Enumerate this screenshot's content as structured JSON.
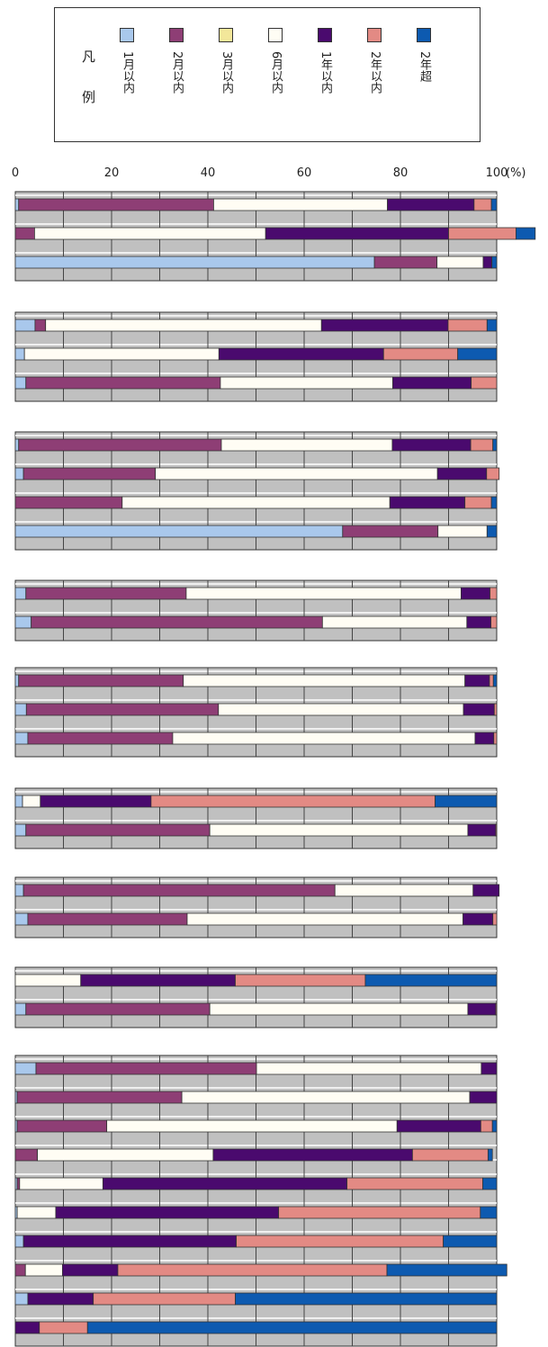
{
  "legend": {
    "title_1": "凡",
    "title_2": "例",
    "items": [
      {
        "label": "1月以内",
        "color": "#a9c8ec"
      },
      {
        "label": "2月以内",
        "color": "#8e3e75"
      },
      {
        "label": "3月以内",
        "color": "#f3e79a"
      },
      {
        "label": "6月以内",
        "color": "#fffdf4"
      },
      {
        "label": "1年以内",
        "color": "#4a0a6e"
      },
      {
        "label": "2年以内",
        "color": "#e38a84"
      },
      {
        "label": "2年超",
        "color": "#0d5ab0"
      }
    ]
  },
  "axis": {
    "ticks": [
      "0",
      "20",
      "40",
      "60",
      "80",
      "100"
    ],
    "unit": "(%)"
  },
  "chart_data": {
    "type": "bar",
    "orientation": "horizontal-stacked-100",
    "xlim": [
      0,
      100
    ],
    "series_names": [
      "1月以内",
      "2月以内",
      "3月以内",
      "6月以内",
      "1年以内",
      "2年以内",
      "2年超"
    ],
    "grid": true,
    "panels": [
      {
        "rows": [
          [
            0.7,
            40.5,
            0,
            36.1,
            18.0,
            3.6,
            1.1
          ],
          [
            0,
            4,
            0,
            48,
            38,
            14,
            4
          ],
          [
            74.6,
            13.0,
            0,
            9.6,
            1.8,
            0,
            1.0
          ]
        ]
      },
      {
        "rows": [
          [
            4.1,
            2.2,
            0,
            57.3,
            26.3,
            8.1,
            2.0
          ],
          [
            1.9,
            0,
            0,
            40.4,
            34.2,
            15.4,
            8.1
          ],
          [
            2.2,
            40.4,
            0,
            35.8,
            16.3,
            5.3,
            0
          ]
        ]
      },
      {
        "rows": [
          [
            0.7,
            42.1,
            0,
            35.5,
            16.3,
            4.6,
            0.8
          ],
          [
            1.7,
            27.4,
            0,
            58.6,
            10.2,
            2.6,
            0
          ],
          [
            0,
            22.2,
            0,
            55.6,
            15.6,
            5.5,
            1.1
          ],
          [
            68.0,
            19.8,
            0,
            10.2,
            0,
            0,
            2.0
          ]
        ]
      },
      {
        "rows": [
          [
            2.2,
            33.3,
            0,
            57.1,
            6.0,
            1.4,
            0
          ],
          [
            3.3,
            60.5,
            0,
            30.0,
            5.0,
            1.2,
            0
          ]
        ]
      },
      {
        "rows": [
          [
            0.7,
            34.2,
            0,
            58.5,
            5.1,
            0.8,
            0.7
          ],
          [
            2.3,
            39.9,
            0,
            50.9,
            6.4,
            0.5,
            0
          ],
          [
            2.6,
            30.1,
            0,
            62.8,
            3.9,
            0.6,
            0
          ]
        ]
      },
      {
        "rows": [
          [
            1.5,
            0,
            0,
            3.7,
            23.0,
            59.0,
            12.8
          ],
          [
            2.2,
            38.2,
            0,
            53.6,
            5.8,
            0.2,
            0
          ]
        ]
      },
      {
        "rows": [
          [
            1.7,
            64.7,
            0,
            28.7,
            5.4,
            0,
            0
          ],
          [
            2.6,
            33.1,
            0,
            57.3,
            6.2,
            0.8,
            0
          ]
        ]
      },
      {
        "rows": [
          [
            0,
            0,
            0,
            13.6,
            32.1,
            27.0,
            27.3
          ],
          [
            2.2,
            38.2,
            0,
            53.6,
            5.8,
            0.2,
            0
          ]
        ]
      },
      {
        "rows": [
          [
            4.3,
            45.8,
            0,
            46.7,
            3.2,
            0,
            0
          ],
          [
            0.4,
            34.2,
            0,
            59.8,
            5.6,
            0,
            0
          ],
          [
            0.4,
            18.6,
            0,
            60.3,
            17.4,
            2.4,
            0.9
          ],
          [
            0,
            4.6,
            0,
            36.5,
            41.4,
            15.7,
            0.9
          ],
          [
            0.4,
            0.5,
            0,
            17.3,
            50.7,
            28.2,
            2.9
          ],
          [
            0.4,
            0,
            0,
            8.0,
            46.3,
            41.9,
            3.4
          ],
          [
            1.7,
            0,
            0,
            0,
            44.2,
            43.0,
            11.1
          ],
          [
            0,
            2.1,
            0,
            7.7,
            11.5,
            55.9,
            24.9
          ],
          [
            2.6,
            0,
            0,
            0,
            13.6,
            29.5,
            54.3
          ],
          [
            0,
            0,
            0,
            0,
            5.0,
            10.0,
            85.0
          ]
        ]
      }
    ]
  }
}
